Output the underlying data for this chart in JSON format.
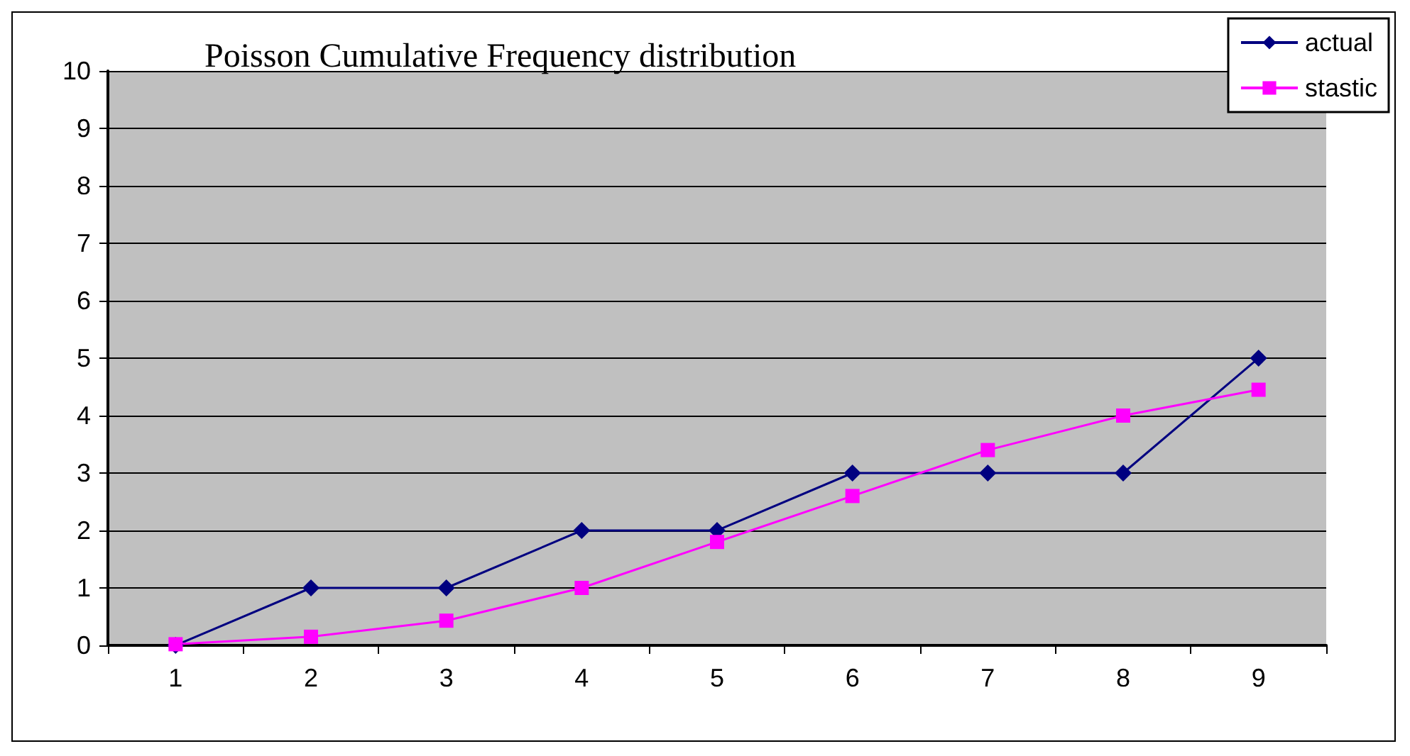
{
  "chart_data": {
    "type": "line",
    "title": "Poisson Cumulative Frequency distribution",
    "categories": [
      "1",
      "2",
      "3",
      "4",
      "5",
      "6",
      "7",
      "8",
      "9"
    ],
    "series": [
      {
        "name": "actual",
        "color": "#000080",
        "marker": "diamond",
        "values": [
          0,
          1,
          1,
          2,
          2,
          3,
          3,
          3,
          5
        ]
      },
      {
        "name": "stastic",
        "color": "#ff00ff",
        "marker": "square",
        "values": [
          0.02,
          0.15,
          0.43,
          1.0,
          1.8,
          2.6,
          3.4,
          4.0,
          4.45
        ]
      }
    ],
    "ylim": [
      0,
      10
    ],
    "yticks": [
      0,
      1,
      2,
      3,
      4,
      5,
      6,
      7,
      8,
      9,
      10
    ],
    "grid": "y",
    "legend": "top right"
  }
}
